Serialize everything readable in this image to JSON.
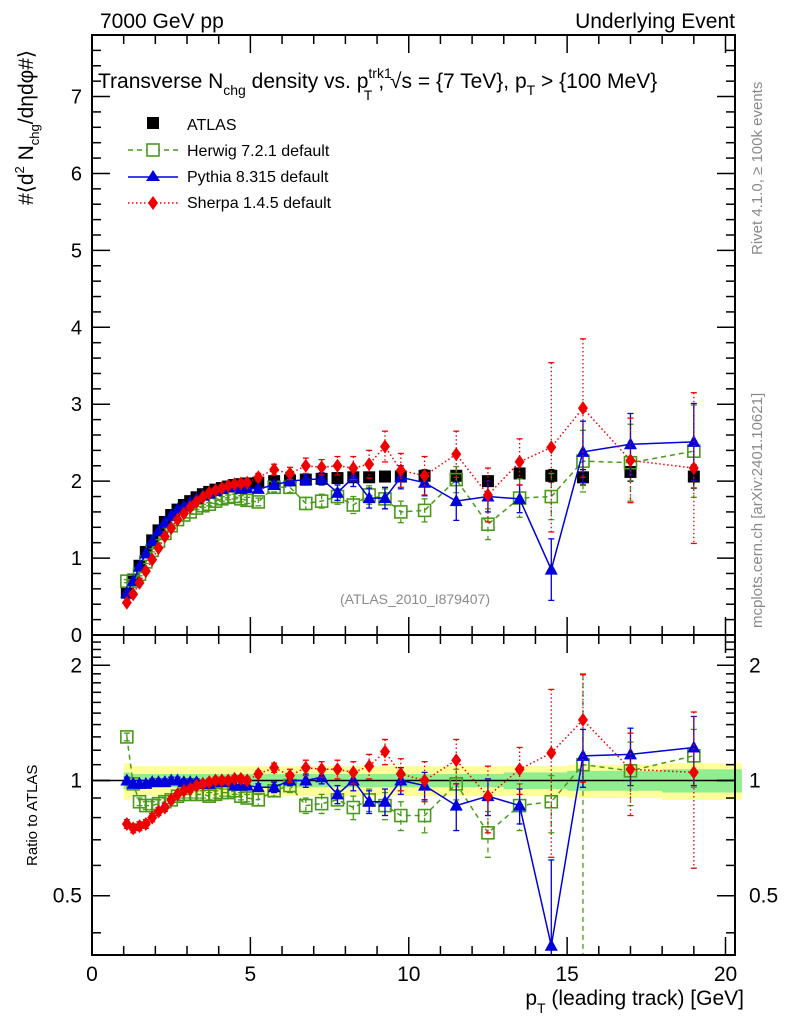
{
  "header": {
    "left": "7000 GeV pp",
    "right": "Underlying Event"
  },
  "side_labels": {
    "rivet": "Rivet 4.1.0, ≥ 100k events",
    "mcplots": "mcplots.cern.ch [arXiv:2401.10621]"
  },
  "chart_data": [
    {
      "type": "scatter",
      "panel": "main",
      "title": "Transverse N_chg density vs. p_T^trk1, √s = {7 TeV}, p_T > {100 MeV}",
      "title_parts": {
        "a": "Transverse N",
        "a_sub": "chg",
        "b": " density vs. p",
        "b_sup": "trk1",
        "b_sub": "T",
        "c": ", √s = {7 TeV}, p",
        "c_sub": "T",
        "d": " > {100 MeV}"
      },
      "ylabel": "#⟨d² N_chg/dηdφ#⟩",
      "ylabel_parts": {
        "a": "#⟨d",
        "sup": "2",
        "b": " N",
        "sub": "chg",
        "c": "/dηdφ#⟩"
      },
      "xlabel": "",
      "xlim": [
        0,
        20.3
      ],
      "ylim": [
        0,
        7.8
      ],
      "yticks": [
        0,
        1,
        2,
        3,
        4,
        5,
        6,
        7
      ],
      "legend_position": "top-left",
      "watermark": "(ATLAS_2010_I879407)",
      "x": [
        1.1,
        1.3,
        1.5,
        1.7,
        1.9,
        2.1,
        2.3,
        2.5,
        2.7,
        2.9,
        3.1,
        3.3,
        3.5,
        3.7,
        3.9,
        4.1,
        4.3,
        4.5,
        4.7,
        4.9,
        5.25,
        5.75,
        6.25,
        6.75,
        7.25,
        7.75,
        8.25,
        8.75,
        9.25,
        9.75,
        10.5,
        11.5,
        12.5,
        13.5,
        14.5,
        15.5,
        17.0,
        19.0
      ],
      "series": [
        {
          "name": "ATLAS",
          "style": "data",
          "color": "#000000",
          "marker": "square-filled",
          "values": [
            0.55,
            0.72,
            0.9,
            1.08,
            1.23,
            1.36,
            1.47,
            1.56,
            1.63,
            1.69,
            1.74,
            1.79,
            1.83,
            1.86,
            1.89,
            1.91,
            1.93,
            1.95,
            1.96,
            1.97,
            1.98,
            2.0,
            2.01,
            2.02,
            2.03,
            2.04,
            2.05,
            2.05,
            2.06,
            2.06,
            2.07,
            2.07,
            2.0,
            2.1,
            2.07,
            2.05,
            2.12,
            2.06
          ],
          "errors": [
            0.02,
            0.02,
            0.02,
            0.02,
            0.02,
            0.02,
            0.02,
            0.02,
            0.02,
            0.02,
            0.02,
            0.02,
            0.02,
            0.02,
            0.02,
            0.02,
            0.02,
            0.02,
            0.02,
            0.02,
            0.03,
            0.03,
            0.03,
            0.03,
            0.03,
            0.03,
            0.04,
            0.04,
            0.04,
            0.04,
            0.05,
            0.05,
            0.06,
            0.07,
            0.08,
            0.1,
            0.12,
            0.15
          ]
        },
        {
          "name": "Herwig 7.2.1 default",
          "color": "#4a9a1a",
          "marker": "square-open",
          "line": "dashed",
          "values": [
            0.7,
            0.7,
            0.79,
            0.95,
            1.1,
            1.22,
            1.32,
            1.42,
            1.5,
            1.56,
            1.6,
            1.65,
            1.68,
            1.7,
            1.74,
            1.77,
            1.79,
            1.8,
            1.77,
            1.75,
            1.73,
            1.92,
            1.92,
            1.71,
            1.74,
            1.8,
            1.69,
            1.82,
            1.77,
            1.6,
            1.62,
            2.02,
            1.44,
            1.78,
            1.8,
            2.26,
            2.24,
            2.39
          ],
          "errors": [
            0.02,
            0.02,
            0.02,
            0.02,
            0.02,
            0.02,
            0.02,
            0.02,
            0.02,
            0.02,
            0.02,
            0.02,
            0.02,
            0.02,
            0.03,
            0.03,
            0.03,
            0.03,
            0.04,
            0.04,
            0.05,
            0.06,
            0.07,
            0.08,
            0.09,
            0.1,
            0.11,
            0.12,
            0.13,
            0.14,
            0.15,
            0.17,
            0.2,
            0.25,
            0.3,
            0.4,
            0.5,
            0.6
          ]
        },
        {
          "name": "Pythia 8.315 default",
          "color": "#0000dd",
          "marker": "triangle-filled",
          "line": "solid",
          "values": [
            0.55,
            0.7,
            0.89,
            1.06,
            1.22,
            1.35,
            1.46,
            1.55,
            1.63,
            1.67,
            1.72,
            1.77,
            1.81,
            1.84,
            1.87,
            1.9,
            1.92,
            1.93,
            1.9,
            1.91,
            1.9,
            1.95,
            2.0,
            2.02,
            2.03,
            1.85,
            2.05,
            1.78,
            1.78,
            2.05,
            1.98,
            1.74,
            1.8,
            1.77,
            0.85,
            2.38,
            2.48,
            2.51
          ],
          "errors": [
            0.02,
            0.02,
            0.02,
            0.02,
            0.02,
            0.02,
            0.02,
            0.02,
            0.02,
            0.02,
            0.02,
            0.02,
            0.02,
            0.02,
            0.02,
            0.02,
            0.02,
            0.02,
            0.03,
            0.03,
            0.04,
            0.05,
            0.06,
            0.07,
            0.08,
            0.1,
            0.12,
            0.13,
            0.14,
            0.15,
            0.17,
            0.25,
            0.2,
            0.18,
            0.4,
            0.4,
            0.4,
            0.5
          ]
        },
        {
          "name": "Sherpa 1.4.5 default",
          "color": "#ee0000",
          "marker": "diamond-filled",
          "line": "dotted",
          "values": [
            0.42,
            0.53,
            0.68,
            0.83,
            0.98,
            1.13,
            1.28,
            1.39,
            1.5,
            1.58,
            1.66,
            1.73,
            1.79,
            1.85,
            1.88,
            1.91,
            1.94,
            1.96,
            1.97,
            1.98,
            2.05,
            2.15,
            2.1,
            2.2,
            2.18,
            2.2,
            2.17,
            2.22,
            2.45,
            2.14,
            2.07,
            2.35,
            1.82,
            2.25,
            2.44,
            2.95,
            2.27,
            2.17
          ],
          "errors": [
            0.02,
            0.02,
            0.02,
            0.02,
            0.02,
            0.02,
            0.02,
            0.02,
            0.02,
            0.02,
            0.02,
            0.02,
            0.02,
            0.02,
            0.03,
            0.03,
            0.03,
            0.03,
            0.04,
            0.04,
            0.05,
            0.07,
            0.08,
            0.1,
            0.1,
            0.12,
            0.15,
            0.18,
            0.2,
            0.22,
            0.25,
            0.3,
            0.35,
            0.3,
            1.1,
            0.9,
            0.55,
            0.98
          ]
        }
      ]
    },
    {
      "type": "scatter",
      "panel": "ratio",
      "ylabel": "Ratio to ATLAS",
      "xlabel": "p_T (leading track) [GeV]",
      "xlabel_parts": {
        "a": "p",
        "sub": "T",
        "b": " (leading track) [GeV]"
      },
      "xlim": [
        0,
        20.3
      ],
      "ylim": [
        0.35,
        2.4
      ],
      "yscale": "log",
      "xticks": [
        0,
        5,
        10,
        15,
        20
      ],
      "yticks": [
        0.5,
        1,
        2
      ],
      "reference_line": 1,
      "bands": {
        "stat_color": "#90ee90",
        "total_color": "#ffff99",
        "stat_halfwidth": [
          0.05,
          0.04,
          0.04,
          0.04,
          0.04,
          0.04,
          0.04,
          0.04,
          0.04,
          0.04,
          0.04,
          0.04,
          0.04,
          0.04,
          0.04,
          0.04,
          0.04,
          0.04,
          0.04,
          0.04,
          0.04,
          0.04,
          0.04,
          0.04,
          0.04,
          0.04,
          0.04,
          0.04,
          0.04,
          0.04,
          0.04,
          0.04,
          0.04,
          0.05,
          0.05,
          0.06,
          0.06,
          0.07
        ],
        "total_halfwidth": [
          0.11,
          0.09,
          0.09,
          0.09,
          0.09,
          0.09,
          0.09,
          0.09,
          0.09,
          0.09,
          0.09,
          0.09,
          0.09,
          0.09,
          0.09,
          0.09,
          0.09,
          0.09,
          0.09,
          0.09,
          0.09,
          0.09,
          0.09,
          0.09,
          0.09,
          0.09,
          0.09,
          0.09,
          0.09,
          0.09,
          0.09,
          0.09,
          0.09,
          0.09,
          0.09,
          0.1,
          0.1,
          0.11
        ]
      },
      "series": [
        {
          "name": "Herwig 7.2.1 default",
          "color": "#4a9a1a",
          "marker": "square-open",
          "line": "dashed",
          "values": [
            1.3,
            0.98,
            0.88,
            0.86,
            0.86,
            0.87,
            0.88,
            0.89,
            0.91,
            0.92,
            0.92,
            0.92,
            0.92,
            0.91,
            0.92,
            0.93,
            0.93,
            0.94,
            0.91,
            0.9,
            0.89,
            0.94,
            0.97,
            0.86,
            0.87,
            0.89,
            0.85,
            0.89,
            0.86,
            0.81,
            0.81,
            0.98,
            0.73,
            0.86,
            0.88,
            1.1,
            1.06,
            1.16
          ],
          "errors": [
            0.03,
            0.02,
            0.02,
            0.02,
            0.02,
            0.02,
            0.02,
            0.02,
            0.02,
            0.02,
            0.02,
            0.02,
            0.02,
            0.02,
            0.02,
            0.02,
            0.02,
            0.02,
            0.02,
            0.02,
            0.03,
            0.03,
            0.04,
            0.04,
            0.05,
            0.05,
            0.06,
            0.06,
            0.07,
            0.07,
            0.08,
            0.09,
            0.1,
            0.12,
            0.15,
            0.8,
            0.2,
            0.2
          ]
        },
        {
          "name": "Pythia 8.315 default",
          "color": "#0000dd",
          "marker": "triangle-filled",
          "line": "solid",
          "values": [
            1.0,
            0.98,
            0.98,
            0.98,
            0.99,
            0.99,
            0.99,
            1.0,
            1.0,
            0.99,
            0.99,
            0.99,
            0.98,
            0.98,
            0.99,
            1.0,
            0.99,
            0.97,
            0.97,
            0.97,
            0.96,
            0.96,
            1.0,
            1.0,
            1.02,
            0.92,
            1.0,
            0.88,
            0.88,
            1.0,
            0.97,
            0.86,
            0.91,
            0.86,
            0.37,
            1.16,
            1.17,
            1.22
          ],
          "errors": [
            0.02,
            0.02,
            0.02,
            0.02,
            0.02,
            0.02,
            0.02,
            0.02,
            0.02,
            0.02,
            0.02,
            0.02,
            0.02,
            0.02,
            0.02,
            0.02,
            0.02,
            0.02,
            0.02,
            0.02,
            0.02,
            0.03,
            0.03,
            0.04,
            0.04,
            0.05,
            0.06,
            0.06,
            0.07,
            0.08,
            0.08,
            0.12,
            0.1,
            0.09,
            0.25,
            0.2,
            0.2,
            0.25
          ]
        },
        {
          "name": "Sherpa 1.4.5 default",
          "color": "#ee0000",
          "marker": "diamond-filled",
          "line": "dotted",
          "values": [
            0.77,
            0.75,
            0.76,
            0.77,
            0.8,
            0.83,
            0.85,
            0.89,
            0.92,
            0.94,
            0.95,
            0.97,
            0.98,
            0.99,
            1.0,
            1.0,
            1.0,
            1.01,
            1.01,
            1.0,
            1.04,
            1.08,
            1.03,
            1.08,
            1.07,
            1.07,
            1.05,
            1.09,
            1.19,
            1.04,
            1.0,
            1.13,
            0.91,
            1.07,
            1.18,
            1.44,
            1.07,
            1.05
          ],
          "errors": [
            0.02,
            0.02,
            0.02,
            0.02,
            0.02,
            0.02,
            0.02,
            0.02,
            0.02,
            0.02,
            0.02,
            0.02,
            0.02,
            0.02,
            0.02,
            0.02,
            0.02,
            0.02,
            0.02,
            0.02,
            0.02,
            0.03,
            0.04,
            0.05,
            0.05,
            0.06,
            0.07,
            0.08,
            0.09,
            0.1,
            0.12,
            0.15,
            0.18,
            0.15,
            0.55,
            0.45,
            0.26,
            0.46
          ]
        }
      ]
    }
  ]
}
